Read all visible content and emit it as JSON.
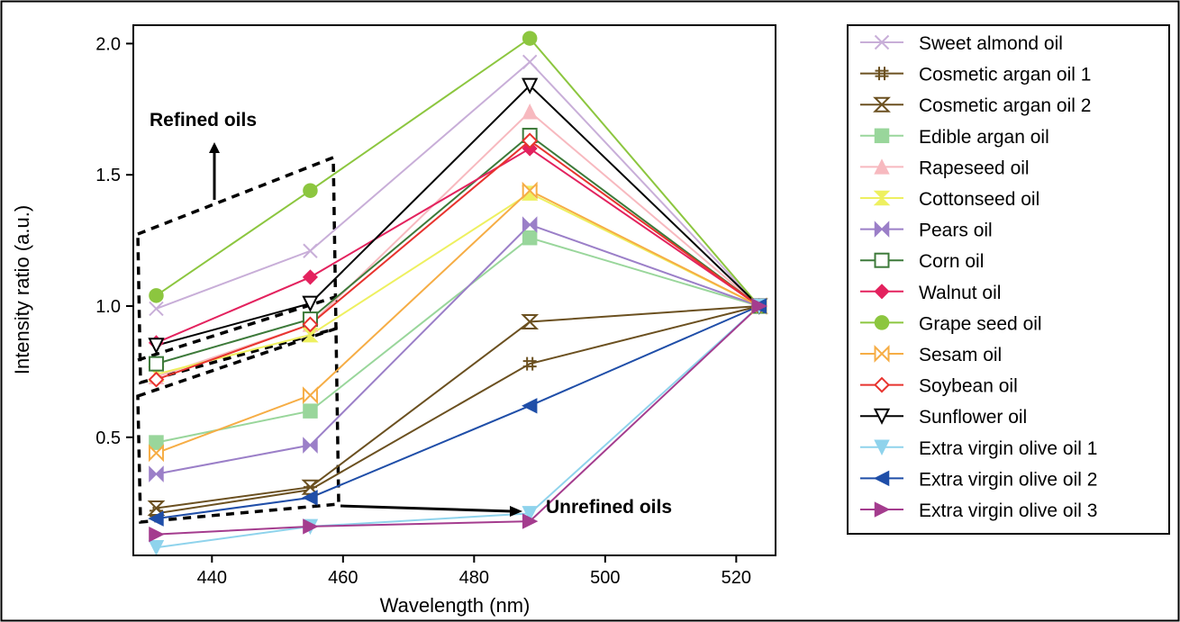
{
  "chart_data": {
    "type": "line",
    "title": "",
    "xlabel": "Wavelength (nm)",
    "ylabel": "Intensity ratio (a.u.)",
    "xlim": [
      428,
      526
    ],
    "ylim": [
      0.05,
      2.07
    ],
    "xticks": [
      440,
      460,
      480,
      500,
      520
    ],
    "yticks": [
      0.5,
      1.0,
      1.5,
      2.0
    ],
    "x": [
      431.5,
      455,
      488.5,
      523.5
    ],
    "grid": false,
    "legend_position": "outside-right",
    "series": [
      {
        "name": "Sweet almond oil",
        "color": "#c8aed8",
        "marker": "x",
        "values": [
          0.99,
          1.21,
          1.93,
          1.0
        ]
      },
      {
        "name": "Cosmetic argan oil 1",
        "color": "#6b5020",
        "marker": "hash",
        "values": [
          0.21,
          0.3,
          0.78,
          1.0
        ]
      },
      {
        "name": "Cosmetic argan oil 2",
        "color": "#6b5020",
        "marker": "hourglass",
        "values": [
          0.23,
          0.31,
          0.94,
          1.0
        ]
      },
      {
        "name": "Edible argan oil",
        "color": "#99d69b",
        "marker": "square",
        "values": [
          0.48,
          0.6,
          1.26,
          1.0
        ]
      },
      {
        "name": "Rapeseed oil",
        "color": "#f7b9bf",
        "marker": "triangle-up",
        "values": [
          0.73,
          0.93,
          1.74,
          1.0
        ]
      },
      {
        "name": "Cottonseed oil",
        "color": "#eef060",
        "marker": "hourglass-filled",
        "values": [
          0.74,
          0.89,
          1.43,
          1.0
        ]
      },
      {
        "name": "Pears oil",
        "color": "#9b7fc8",
        "marker": "bowtie",
        "values": [
          0.36,
          0.47,
          1.31,
          1.0
        ]
      },
      {
        "name": "Corn oil",
        "color": "#3d7a3a",
        "marker": "square-open",
        "values": [
          0.78,
          0.95,
          1.65,
          1.0
        ]
      },
      {
        "name": "Walnut oil",
        "color": "#e3225e",
        "marker": "diamond",
        "values": [
          0.86,
          1.11,
          1.6,
          1.0
        ]
      },
      {
        "name": "Grape seed oil",
        "color": "#8cc63f",
        "marker": "circle",
        "values": [
          1.04,
          1.44,
          2.02,
          1.0
        ]
      },
      {
        "name": "Sesam oil",
        "color": "#f6ad45",
        "marker": "bowtie-open",
        "values": [
          0.44,
          0.66,
          1.44,
          1.0
        ]
      },
      {
        "name": "Soybean oil",
        "color": "#e8332e",
        "marker": "diamond-open",
        "values": [
          0.72,
          0.93,
          1.63,
          1.0
        ]
      },
      {
        "name": "Sunflower oil",
        "color": "#000000",
        "marker": "triangle-down-open",
        "values": [
          0.85,
          1.01,
          1.84,
          1.0
        ]
      },
      {
        "name": "Extra virgin olive oil 1",
        "color": "#8fd3ec",
        "marker": "triangle-down",
        "values": [
          0.08,
          0.16,
          0.21,
          1.0
        ]
      },
      {
        "name": "Extra virgin olive oil 2",
        "color": "#1f4ea8",
        "marker": "triangle-left",
        "values": [
          0.19,
          0.27,
          0.62,
          1.0
        ]
      },
      {
        "name": "Extra virgin olive oil 3",
        "color": "#a43c8e",
        "marker": "triangle-right",
        "values": [
          0.13,
          0.16,
          0.18,
          1.0
        ]
      }
    ],
    "annotations": {
      "refined": "Refined oils",
      "unrefined": "Unrefined oils"
    }
  }
}
